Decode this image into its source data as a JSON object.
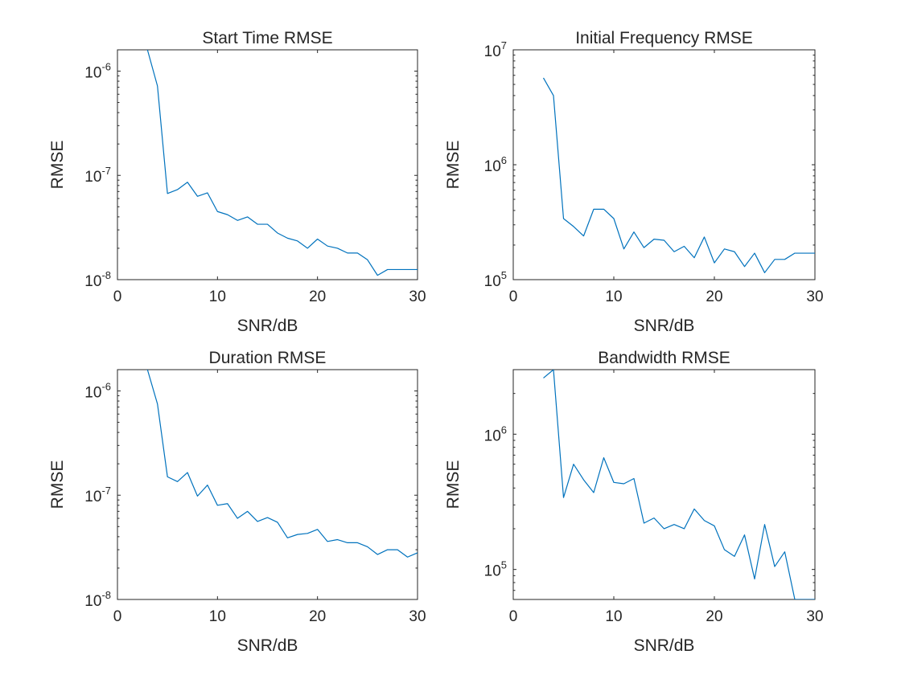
{
  "colors": {
    "series": "#0072BD",
    "axis": "#262626",
    "background": "#ffffff"
  },
  "chart_data": [
    {
      "type": "line",
      "title": "Start Time RMSE",
      "xlabel": "SNR/dB",
      "ylabel": "RMSE",
      "xlim": [
        0,
        30
      ],
      "ylim": [
        1e-08,
        1.6e-06
      ],
      "yscale": "log",
      "grid": false,
      "xticks": [
        0,
        10,
        20,
        30
      ],
      "yticks": [
        {
          "value": 1e-08,
          "base": "10",
          "exp": "-8"
        },
        {
          "value": 1e-07,
          "base": "10",
          "exp": "-7"
        },
        {
          "value": 1e-06,
          "base": "10",
          "exp": "-6"
        }
      ],
      "x": [
        3,
        4,
        5,
        6,
        7,
        8,
        9,
        10,
        11,
        12,
        13,
        14,
        15,
        16,
        17,
        18,
        19,
        20,
        21,
        22,
        23,
        24,
        25,
        26,
        27,
        28,
        29,
        30
      ],
      "y": [
        1.6e-06,
        7.2e-07,
        6.7e-08,
        7.3e-08,
        8.6e-08,
        6.3e-08,
        6.8e-08,
        4.5e-08,
        4.2e-08,
        3.7e-08,
        4e-08,
        3.4e-08,
        3.4e-08,
        2.8e-08,
        2.5e-08,
        2.35e-08,
        2e-08,
        2.45e-08,
        2.1e-08,
        2e-08,
        1.8e-08,
        1.8e-08,
        1.55e-08,
        1.1e-08,
        1.25e-08,
        1.25e-08,
        1.25e-08,
        1.25e-08
      ]
    },
    {
      "type": "line",
      "title": "Initial Frequency RMSE",
      "xlabel": "SNR/dB",
      "ylabel": "RMSE",
      "xlim": [
        0,
        30
      ],
      "ylim": [
        100000.0,
        10000000.0
      ],
      "yscale": "log",
      "grid": false,
      "xticks": [
        0,
        10,
        20,
        30
      ],
      "yticks": [
        {
          "value": 100000.0,
          "base": "10",
          "exp": "5"
        },
        {
          "value": 1000000.0,
          "base": "10",
          "exp": "6"
        },
        {
          "value": 10000000.0,
          "base": "10",
          "exp": "7"
        }
      ],
      "x": [
        3,
        4,
        5,
        6,
        7,
        8,
        9,
        10,
        11,
        12,
        13,
        14,
        15,
        16,
        17,
        18,
        19,
        20,
        21,
        22,
        23,
        24,
        25,
        26,
        27,
        28,
        29,
        30
      ],
      "y": [
        5700000.0,
        4000000.0,
        340000.0,
        290000.0,
        240000.0,
        410000.0,
        410000.0,
        340000.0,
        185000.0,
        260000.0,
        190000.0,
        225000.0,
        220000.0,
        175000.0,
        195000.0,
        155000.0,
        235000.0,
        140000.0,
        185000.0,
        175000.0,
        130000.0,
        170000.0,
        115000.0,
        150000.0,
        150000.0,
        170000.0,
        170000.0,
        170000.0
      ]
    },
    {
      "type": "line",
      "title": "Duration RMSE",
      "xlabel": "SNR/dB",
      "ylabel": "RMSE",
      "xlim": [
        0,
        30
      ],
      "ylim": [
        1e-08,
        1.6e-06
      ],
      "yscale": "log",
      "grid": false,
      "xticks": [
        0,
        10,
        20,
        30
      ],
      "yticks": [
        {
          "value": 1e-08,
          "base": "10",
          "exp": "-8"
        },
        {
          "value": 1e-07,
          "base": "10",
          "exp": "-7"
        },
        {
          "value": 1e-06,
          "base": "10",
          "exp": "-6"
        }
      ],
      "x": [
        3,
        4,
        5,
        6,
        7,
        8,
        9,
        10,
        11,
        12,
        13,
        14,
        15,
        16,
        17,
        18,
        19,
        20,
        21,
        22,
        23,
        24,
        25,
        26,
        27,
        28,
        29,
        30
      ],
      "y": [
        1.6e-06,
        7.5e-07,
        1.5e-07,
        1.35e-07,
        1.65e-07,
        9.8e-08,
        1.25e-07,
        8e-08,
        8.3e-08,
        6e-08,
        7e-08,
        5.6e-08,
        6.1e-08,
        5.5e-08,
        3.9e-08,
        4.2e-08,
        4.3e-08,
        4.7e-08,
        3.6e-08,
        3.75e-08,
        3.5e-08,
        3.5e-08,
        3.2e-08,
        2.7e-08,
        3e-08,
        3e-08,
        2.55e-08,
        2.8e-08
      ]
    },
    {
      "type": "line",
      "title": "Bandwidth RMSE",
      "xlabel": "SNR/dB",
      "ylabel": "RMSE",
      "xlim": [
        0,
        30
      ],
      "ylim": [
        60000.0,
        3000000.0
      ],
      "yscale": "log",
      "grid": false,
      "xticks": [
        0,
        10,
        20,
        30
      ],
      "yticks": [
        {
          "value": 100000.0,
          "base": "10",
          "exp": "5"
        },
        {
          "value": 1000000.0,
          "base": "10",
          "exp": "6"
        }
      ],
      "x": [
        3,
        4,
        5,
        6,
        7,
        8,
        9,
        10,
        11,
        12,
        13,
        14,
        15,
        16,
        17,
        18,
        19,
        20,
        21,
        22,
        23,
        24,
        25,
        26,
        27,
        28,
        29,
        30
      ],
      "y": [
        2600000.0,
        3000000.0,
        340000.0,
        600000.0,
        460000.0,
        370000.0,
        670000.0,
        440000.0,
        430000.0,
        470000.0,
        220000.0,
        240000.0,
        200000.0,
        215000.0,
        200000.0,
        280000.0,
        230000.0,
        210000.0,
        140000.0,
        125000.0,
        180000.0,
        85000.0,
        215000.0,
        105000.0,
        135000.0,
        60000.0,
        60000.0,
        60000.0
      ]
    }
  ]
}
